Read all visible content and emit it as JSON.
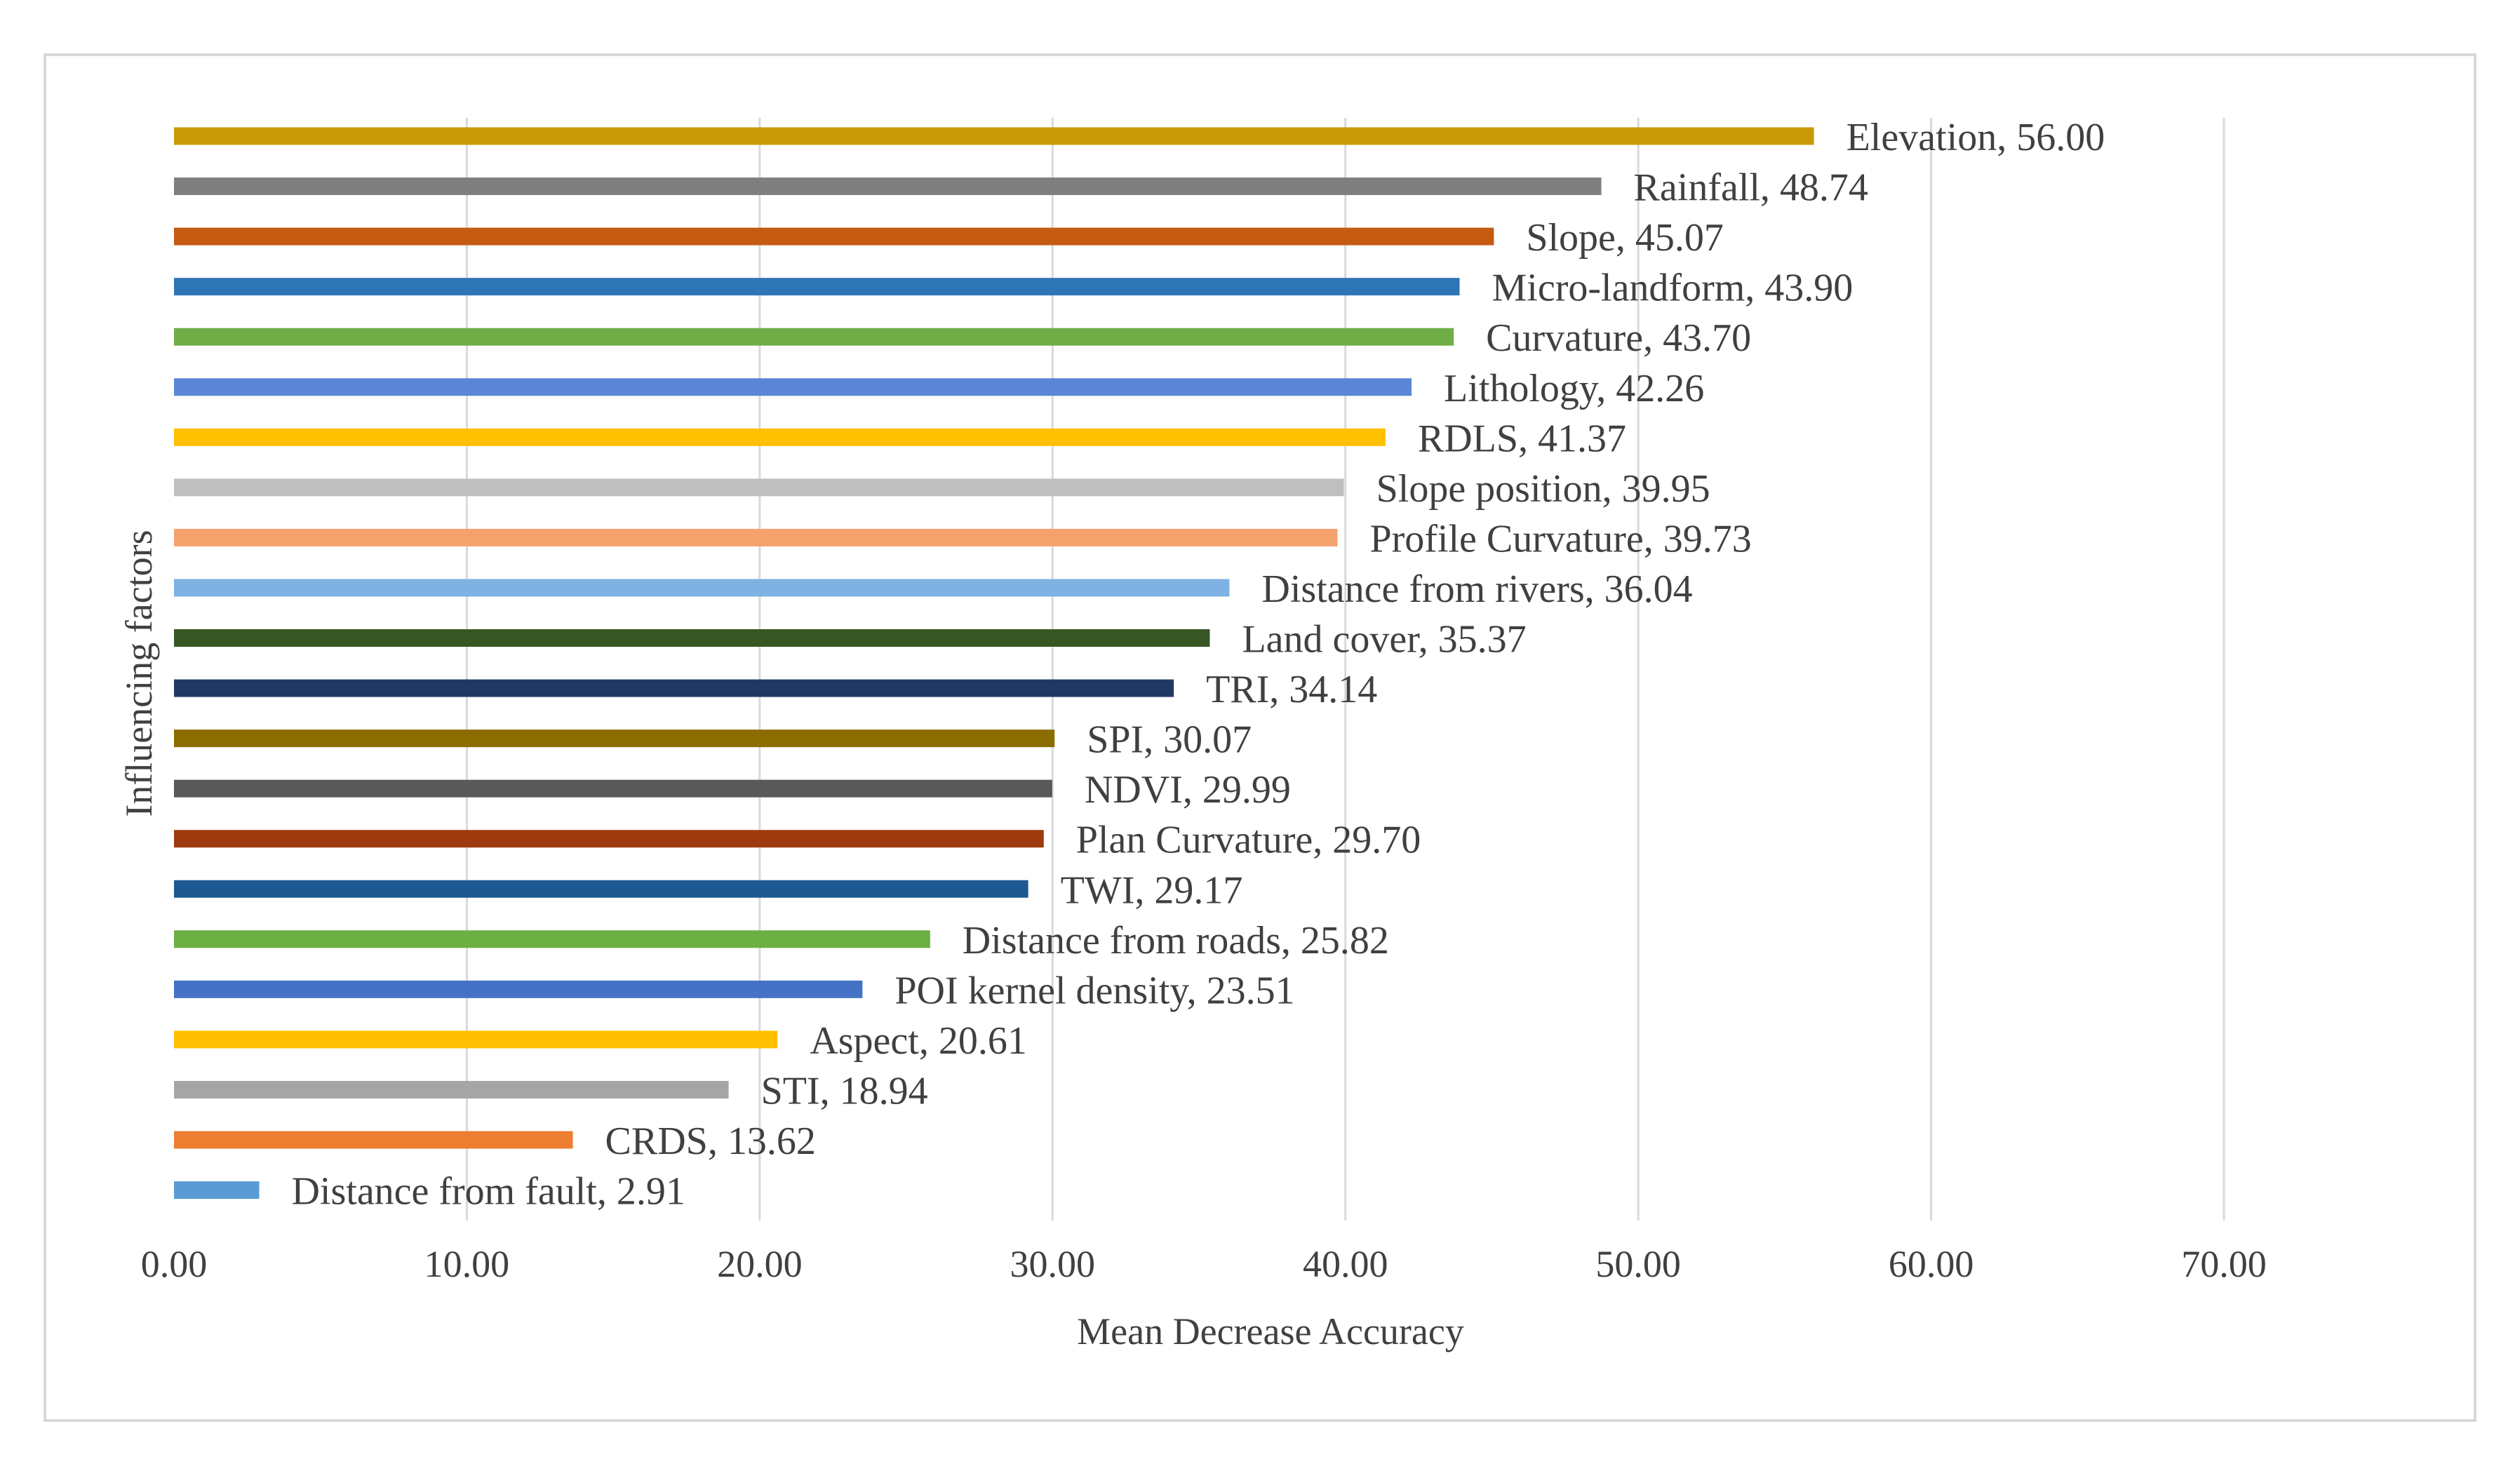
{
  "chart_data": {
    "type": "bar",
    "orientation": "horizontal",
    "xlabel": "Mean Decrease Accuracy",
    "ylabel": "Influencing factors",
    "xlim": [
      0,
      70
    ],
    "xticks": [
      0,
      10,
      20,
      30,
      40,
      50,
      60,
      70
    ],
    "xtick_labels": [
      "0.00",
      "10.00",
      "20.00",
      "30.00",
      "40.00",
      "50.00",
      "60.00",
      "70.00"
    ],
    "grid": "vertical",
    "bars": [
      {
        "label": "Elevation, 56.00",
        "name": "Elevation",
        "value": 56.0,
        "color": "#C99A06"
      },
      {
        "label": "Rainfall, 48.74",
        "name": "Rainfall",
        "value": 48.74,
        "color": "#7F7F7F"
      },
      {
        "label": "Slope, 45.07",
        "name": "Slope",
        "value": 45.07,
        "color": "#C55A11"
      },
      {
        "label": "Micro-landform, 43.90",
        "name": "Micro-landform",
        "value": 43.9,
        "color": "#2E75B6"
      },
      {
        "label": "Curvature, 43.70",
        "name": "Curvature",
        "value": 43.7,
        "color": "#70AD47"
      },
      {
        "label": "Lithology, 42.26",
        "name": "Lithology",
        "value": 42.26,
        "color": "#5B86D6"
      },
      {
        "label": "RDLS, 41.37",
        "name": "RDLS",
        "value": 41.37,
        "color": "#FFC000"
      },
      {
        "label": "Slope position, 39.95",
        "name": "Slope position",
        "value": 39.95,
        "color": "#BFBFBF"
      },
      {
        "label": "Profile Curvature, 39.73",
        "name": "Profile Curvature",
        "value": 39.73,
        "color": "#F4A16C"
      },
      {
        "label": "Distance from rivers, 36.04",
        "name": "Distance from rivers",
        "value": 36.04,
        "color": "#7DB2E3"
      },
      {
        "label": "Land cover, 35.37",
        "name": "Land cover",
        "value": 35.37,
        "color": "#375623"
      },
      {
        "label": "TRI, 34.14",
        "name": "TRI",
        "value": 34.14,
        "color": "#203864"
      },
      {
        "label": "SPI, 30.07",
        "name": "SPI",
        "value": 30.07,
        "color": "#8B6C00"
      },
      {
        "label": "NDVI, 29.99",
        "name": "NDVI",
        "value": 29.99,
        "color": "#595959"
      },
      {
        "label": "Plan Curvature, 29.70",
        "name": "Plan Curvature",
        "value": 29.7,
        "color": "#9E3A0E"
      },
      {
        "label": "TWI, 29.17",
        "name": "TWI",
        "value": 29.17,
        "color": "#1F5992"
      },
      {
        "label": "Distance from roads, 25.82",
        "name": "Distance from roads",
        "value": 25.82,
        "color": "#6AB042"
      },
      {
        "label": "POI kernel density, 23.51",
        "name": "POI kernel density",
        "value": 23.51,
        "color": "#4472C4"
      },
      {
        "label": "Aspect, 20.61",
        "name": "Aspect",
        "value": 20.61,
        "color": "#FFC000"
      },
      {
        "label": "STI, 18.94",
        "name": "STI",
        "value": 18.94,
        "color": "#A5A5A5"
      },
      {
        "label": "CRDS, 13.62",
        "name": "CRDS",
        "value": 13.62,
        "color": "#ED7D31"
      },
      {
        "label": "Distance from fault, 2.91",
        "name": "Distance from fault",
        "value": 2.91,
        "color": "#5B9BD5"
      }
    ],
    "gridline_color": "#D9D9D9",
    "text_color": "#404040"
  }
}
